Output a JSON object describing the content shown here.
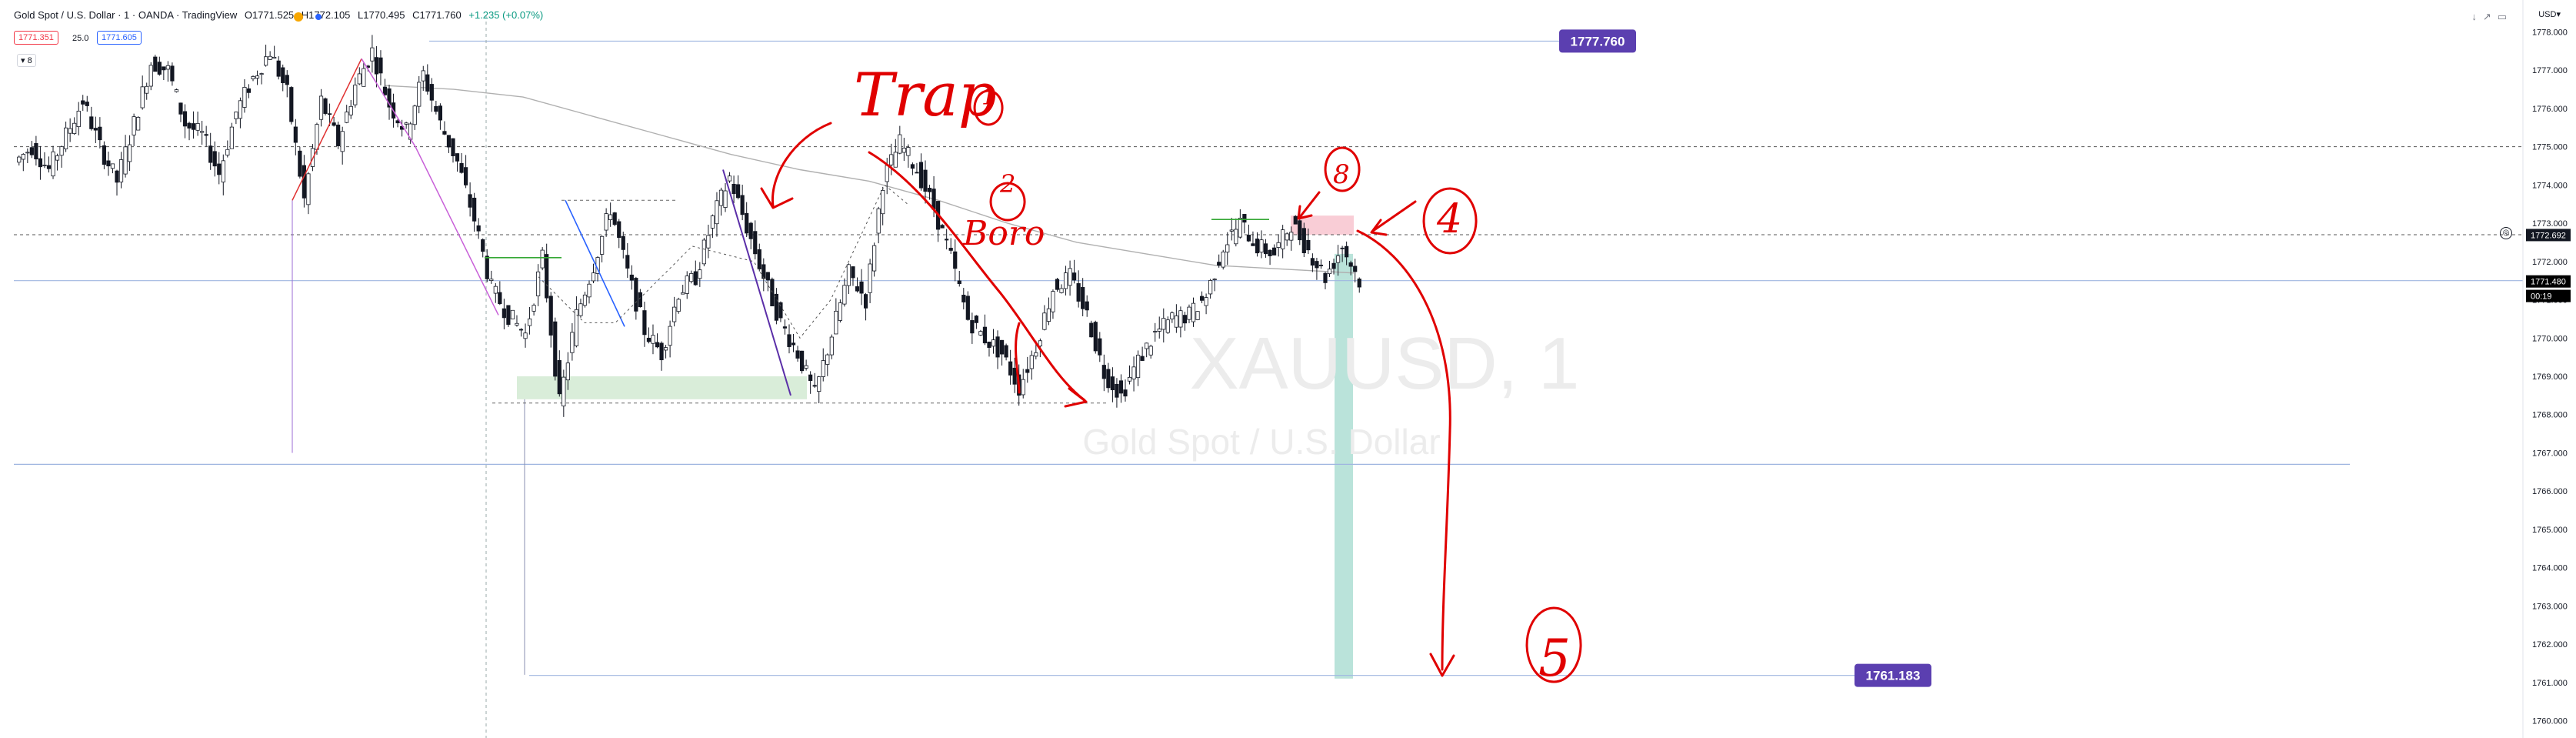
{
  "header": {
    "symbol": "Gold Spot / U.S. Dollar · 1 · OANDA · TradingView",
    "open": "O1771.525",
    "high": "H1772.105",
    "low": "L1770.495",
    "close": "C1771.760",
    "change": "+1.235 (+0.07%)",
    "sell_price": "1771.351",
    "spread": "25.0",
    "buy_price": "1771.605",
    "lots": "8",
    "currency": "USD"
  },
  "colors": {
    "bull": "#131722",
    "bear": "#131722",
    "label_bg": "#5b3fb0",
    "annotation": "#e00000",
    "hline": "#9fb6e0",
    "target_zone": "#b2e0d6",
    "entry_zone": "#f8c8d2",
    "demand_zone": "#cfe9cf"
  },
  "watermark": {
    "symbol": "XAUUSD, 1",
    "name": "Gold Spot / U.S. Dollar"
  },
  "annotations": {
    "trap_label": "Trap",
    "trap_num": "1",
    "num2": "2",
    "boro_label": "Boro",
    "num3": "8",
    "num4": "4",
    "num5": "5"
  },
  "chart_data": {
    "type": "candlestick",
    "symbol": "XAUUSD",
    "timeframe": "1",
    "ylim": [
      1760.0,
      1778.0
    ],
    "y_ticks": [
      "1778.000",
      "1777.000",
      "1776.000",
      "1775.000",
      "1774.000",
      "1773.000",
      "1772.000",
      "1771.000",
      "1770.000",
      "1769.000",
      "1768.000",
      "1767.000",
      "1766.000",
      "1765.000",
      "1764.000",
      "1763.000",
      "1762.000",
      "1761.000",
      "1760.000"
    ],
    "price_labels": [
      {
        "text": "1777.760",
        "value": 1777.76
      },
      {
        "text": "1761.183",
        "value": 1761.183
      }
    ],
    "axis_tags": [
      {
        "text": "1772.692",
        "value": 1772.692
      },
      {
        "text": "1771.480",
        "value": 1771.48
      },
      {
        "text": "00:19",
        "value": 1771.1
      }
    ],
    "close_path": [
      1774.6,
      1775.0,
      1774.4,
      1775.3,
      1776.2,
      1775.0,
      1774.1,
      1775.6,
      1777.2,
      1777.0,
      1775.6,
      1775.3,
      1774.3,
      1775.9,
      1776.8,
      1777.5,
      1776.4,
      1773.6,
      1776.2,
      1775.1,
      1776.6,
      1777.5,
      1776.1,
      1775.4,
      1776.9,
      1775.6,
      1774.6,
      1773.1,
      1771.3,
      1770.6,
      1770.1,
      1772.1,
      1768.3,
      1770.6,
      1771.9,
      1773.4,
      1771.7,
      1770.2,
      1769.6,
      1771.2,
      1771.6,
      1773.1,
      1774.2,
      1772.9,
      1771.6,
      1770.4,
      1769.6,
      1768.5,
      1770.1,
      1771.7,
      1771.0,
      1774.1,
      1775.1,
      1774.4,
      1773.4,
      1772.1,
      1770.5,
      1770.0,
      1769.6,
      1768.7,
      1769.8,
      1771.3,
      1771.6,
      1770.6,
      1769.1,
      1768.5,
      1769.4,
      1770.1,
      1770.5,
      1770.6,
      1771.1,
      1772.4,
      1773.0,
      1772.4,
      1772.2,
      1773.0,
      1772.3,
      1771.6,
      1772.4,
      1771.5
    ],
    "ma_line": [
      1776.6,
      1776.5,
      1776.3,
      1775.8,
      1775.3,
      1774.8,
      1774.4,
      1774.1,
      1773.6,
      1773.0,
      1772.5,
      1772.2,
      1771.9,
      1771.8,
      1771.7
    ],
    "levels": [
      {
        "value": 1777.76,
        "style": "solid"
      },
      {
        "value": 1775.0,
        "style": "dashed"
      },
      {
        "value": 1772.7,
        "style": "dashed"
      },
      {
        "value": 1771.5,
        "style": "solid"
      },
      {
        "value": 1766.7,
        "style": "solid"
      },
      {
        "value": 1761.183,
        "style": "solid"
      }
    ]
  }
}
